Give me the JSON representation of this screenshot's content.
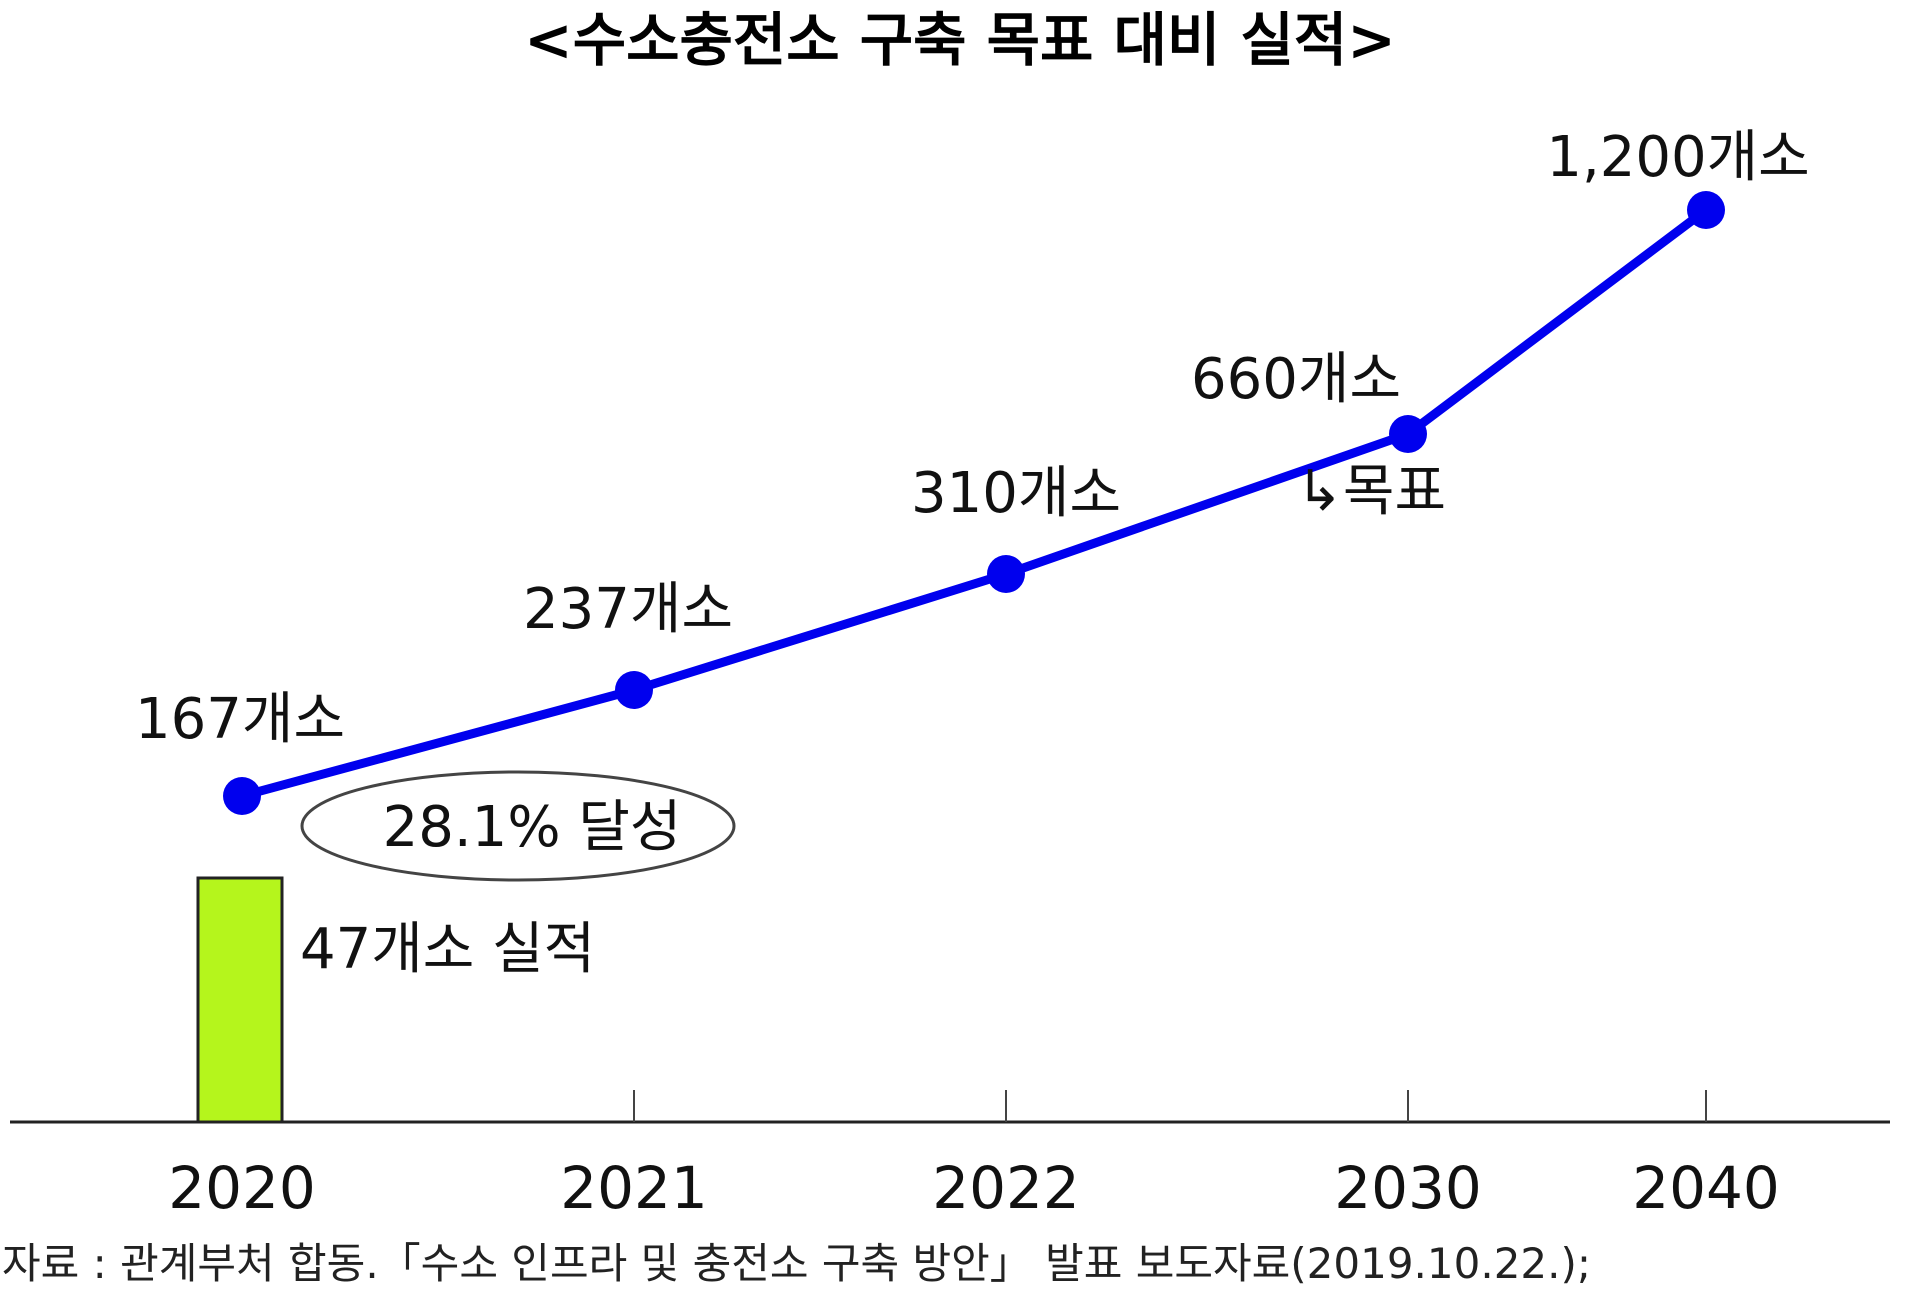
{
  "chart_data": {
    "type": "line",
    "title": "<수소충전소 구축 목표 대비 실적>",
    "categories": [
      "2020",
      "2021",
      "2022",
      "2030",
      "2040"
    ],
    "series": [
      {
        "values": [
          167,
          237,
          310,
          660,
          1200
        ],
        "labels": [
          "167개소",
          "237개소",
          "310개소",
          "660개소",
          "1,200개소"
        ],
        "color": "#0000ee"
      }
    ],
    "actual": {
      "category": "2020",
      "value": 47,
      "label": "47개소 실적",
      "color": "#b5f51c"
    },
    "target_annotation": "↳목표",
    "achievement_annotation": "28.1% 달성",
    "source": "자료 : 관계부처 합동.「수소 인프라 및 충전소 구축 방안」 발표 보도자료(2019.10.22.);",
    "grid": false
  }
}
